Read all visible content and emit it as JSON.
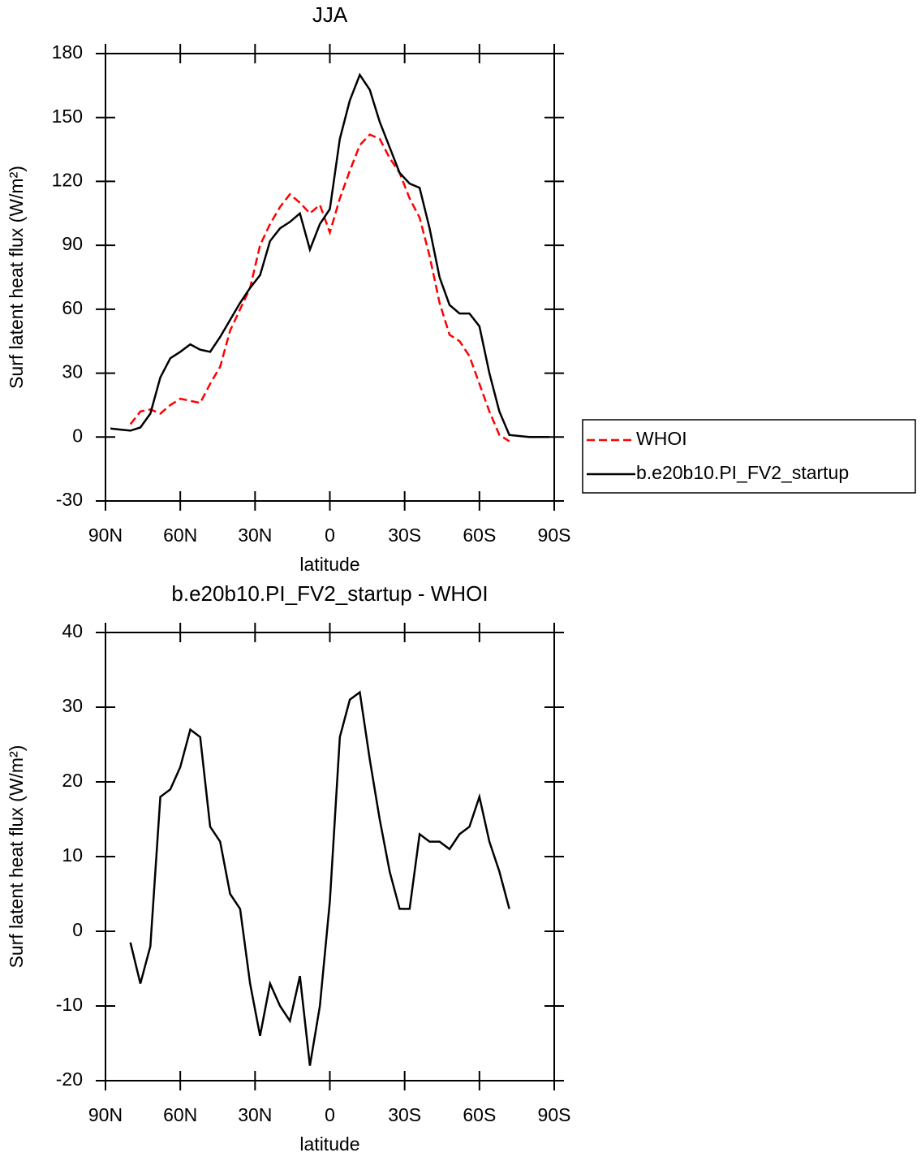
{
  "chart_data": [
    {
      "type": "line",
      "title": "JJA",
      "xlabel": "latitude",
      "ylabel": "Surf latent heat flux (W/m²)",
      "xlim": [
        90,
        -90
      ],
      "xticks": [
        {
          "value": 90,
          "label": "90N"
        },
        {
          "value": 60,
          "label": "60N"
        },
        {
          "value": 30,
          "label": "30N"
        },
        0,
        {
          "value": -30,
          "label": "30S"
        },
        {
          "value": -60,
          "label": "60S"
        },
        {
          "value": -90,
          "label": "90S"
        }
      ],
      "ylim": [
        -30,
        180
      ],
      "yticks": [
        -30,
        0,
        30,
        60,
        90,
        120,
        150,
        180
      ],
      "legend": "outside right",
      "x": [
        88,
        84,
        80,
        76,
        72,
        68,
        64,
        60,
        56,
        52,
        48,
        44,
        40,
        36,
        32,
        28,
        24,
        20,
        16,
        12,
        8,
        4,
        0,
        -4,
        -8,
        -12,
        -16,
        -20,
        -24,
        -28,
        -32,
        -36,
        -40,
        -44,
        -48,
        -52,
        -56,
        -60,
        -64,
        -68,
        -72,
        -76,
        -80,
        -84,
        -88
      ],
      "series": [
        {
          "name": "WHOI",
          "color": "#ff0000",
          "linestyle": "dashed",
          "values": [
            null,
            null,
            6,
            12,
            13,
            11,
            15,
            18,
            17,
            16,
            25,
            33,
            50,
            60,
            70,
            90,
            100,
            108,
            114,
            110,
            105,
            109,
            96,
            112,
            125,
            137,
            142,
            140,
            131,
            124,
            112,
            103,
            85,
            63,
            48,
            45,
            38,
            25,
            12,
            1,
            -2,
            null,
            null,
            null,
            null
          ]
        },
        {
          "name": "b.e20b10.PI_FV2_startup",
          "color": "#000000",
          "linestyle": "solid",
          "values": [
            4,
            3.5,
            3,
            4.5,
            11,
            28,
            37,
            40,
            43.5,
            41,
            40,
            47,
            55,
            63,
            70,
            76,
            92,
            98,
            101,
            105,
            88,
            100,
            107,
            140,
            158,
            170,
            163,
            148,
            136,
            124,
            119,
            117,
            98,
            75,
            62,
            58,
            58,
            52,
            30,
            12,
            1,
            0.5,
            0,
            0,
            0
          ]
        }
      ]
    },
    {
      "type": "line",
      "title": "b.e20b10.PI_FV2_startup - WHOI",
      "xlabel": "latitude",
      "ylabel": "Surf latent heat flux (W/m²)",
      "xlim": [
        90,
        -90
      ],
      "xticks": [
        {
          "value": 90,
          "label": "90N"
        },
        {
          "value": 60,
          "label": "60N"
        },
        {
          "value": 30,
          "label": "30N"
        },
        0,
        {
          "value": -30,
          "label": "30S"
        },
        {
          "value": -60,
          "label": "60S"
        },
        {
          "value": -90,
          "label": "90S"
        }
      ],
      "ylim": [
        -20,
        40
      ],
      "yticks": [
        -20,
        -10,
        0,
        10,
        20,
        30,
        40
      ],
      "x": [
        80,
        76,
        72,
        68,
        64,
        60,
        56,
        52,
        48,
        44,
        40,
        36,
        32,
        28,
        24,
        20,
        16,
        12,
        8,
        4,
        0,
        -4,
        -8,
        -12,
        -16,
        -20,
        -24,
        -28,
        -32,
        -36,
        -40,
        -44,
        -48,
        -52,
        -56,
        -60,
        -64,
        -68,
        -72
      ],
      "series": [
        {
          "color": "#000000",
          "linestyle": "solid",
          "values": [
            -1.5,
            -7,
            -2,
            18,
            19,
            22,
            27,
            26,
            14,
            12,
            5,
            3,
            -7,
            -14,
            -7,
            -10,
            -12,
            -6,
            -18,
            -10,
            4,
            26,
            31,
            32,
            23,
            15,
            8,
            3,
            3,
            13,
            12,
            12,
            11,
            13,
            14,
            18,
            12,
            8,
            3
          ]
        }
      ]
    }
  ]
}
